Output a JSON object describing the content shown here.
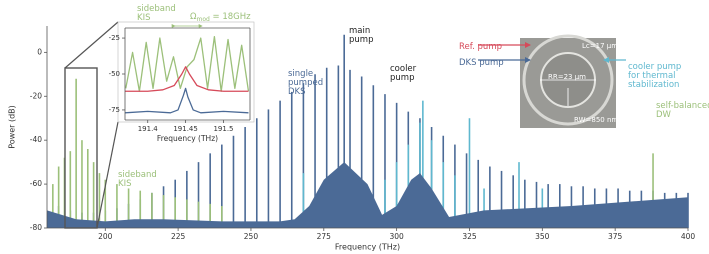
{
  "chart_data": [
    {
      "type": "spectrum",
      "xlabel": "Frequency (THz)",
      "ylabel": "Power (dB)",
      "xlim": [
        180,
        400
      ],
      "ylim": [
        -80,
        12
      ],
      "xticks": [
        200,
        225,
        250,
        275,
        300,
        325,
        350,
        375,
        400
      ],
      "yticks": [
        0,
        -20,
        -40,
        -60,
        -80
      ],
      "series": [
        {
          "style": "lines",
          "color": "#4b6a96",
          "x": [
            184,
            188,
            192,
            196,
            200,
            204,
            208,
            212,
            216,
            220,
            224,
            228,
            232,
            236,
            240,
            244,
            248,
            252,
            256,
            260,
            264,
            268,
            272,
            276,
            280,
            284,
            288,
            292,
            296,
            300,
            304,
            308,
            312,
            316,
            320,
            324,
            328,
            332,
            336,
            340,
            344,
            348,
            352,
            356,
            360,
            364,
            368,
            372,
            376,
            380,
            384,
            388,
            392,
            396,
            400
          ],
          "values": [
            -70,
            -72,
            -73,
            -73,
            -72,
            -71,
            -69,
            -67,
            -64,
            -61,
            -58,
            -54,
            -50,
            -46,
            -42,
            -38,
            -34,
            -30,
            -26,
            -22,
            -18,
            -14,
            -10,
            -7,
            -6,
            -8,
            -11,
            -15,
            -19,
            -23,
            -27,
            -30,
            -34,
            -38,
            -42,
            -46,
            -49,
            -52,
            -54,
            -56,
            -58,
            -59,
            -60,
            -60,
            -61,
            -61,
            -62,
            -62,
            -62,
            -63,
            -63,
            -63,
            -64,
            -64,
            -64
          ]
        },
        {
          "style": "lines",
          "color": "#9cc07a",
          "x": [
            182,
            184,
            186,
            188,
            190,
            192,
            194,
            196,
            198,
            200,
            204,
            208,
            212,
            216,
            220,
            224,
            228,
            232,
            236,
            240,
            388
          ],
          "values": [
            -60,
            -52,
            -48,
            -45,
            -12,
            -40,
            -44,
            -50,
            -55,
            -58,
            -60,
            -62,
            -63,
            -64,
            -65,
            -66,
            -67,
            -68,
            -69,
            -70,
            -46
          ]
        },
        {
          "style": "lines",
          "color": "#5fb8cf",
          "x": [
            268,
            296,
            300,
            304,
            308,
            309,
            312,
            316,
            320,
            325,
            330,
            342,
            350
          ],
          "values": [
            -55,
            -58,
            -50,
            -42,
            -32,
            -22,
            -40,
            -50,
            -56,
            -30,
            -62,
            -50,
            -62
          ]
        },
        {
          "style": "lines",
          "color": "#4b6a96",
          "x": [
            282
          ],
          "values": [
            8
          ]
        },
        {
          "style": "area",
          "color": "#4b6a96",
          "x": [
            180,
            190,
            200,
            210,
            220,
            240,
            260,
            265,
            270,
            275,
            282,
            290,
            295,
            300,
            305,
            308,
            312,
            318,
            330,
            360,
            400
          ],
          "values": [
            -72,
            -76,
            -77,
            -76,
            -76,
            -77,
            -77,
            -76,
            -70,
            -58,
            -50,
            -60,
            -74,
            -70,
            -58,
            -55,
            -62,
            -75,
            -72,
            -70,
            -66
          ]
        }
      ],
      "annotations": [
        {
          "text": [
            "main",
            "pump"
          ],
          "color": "#222222"
        },
        {
          "text": [
            "single",
            "pumped",
            "DKS"
          ],
          "color": "#4b6a96"
        },
        {
          "text": [
            "cooler",
            "pump"
          ],
          "color": "#222222"
        },
        {
          "text": [
            "sideband",
            "KIS"
          ],
          "color": "#9cc07a"
        },
        {
          "text": [
            "self-balanced",
            "DW"
          ],
          "color": "#9cc07a"
        },
        {
          "text": [
            "Ref. pump"
          ],
          "color": "#d64a5a"
        },
        {
          "text": [
            "DKS pump"
          ],
          "color": "#4b6a96"
        },
        {
          "text": [
            "cooler pump",
            "for thermal",
            "stabilization"
          ],
          "color": "#5fb8cf"
        }
      ],
      "image_labels": [
        "Lc=17 μm",
        "RR=23 μm",
        "RW=850 nm"
      ]
    },
    {
      "type": "line",
      "xlabel": "Frequency (THz)",
      "xlim": [
        191.37,
        191.535
      ],
      "ylim": [
        -82,
        -18
      ],
      "xticks": [
        191.4,
        191.45,
        191.5
      ],
      "yticks": [
        -25,
        -50,
        -75
      ],
      "series": [
        {
          "color": "#9cc07a",
          "x": [
            191.371,
            191.38,
            191.389,
            191.398,
            191.407,
            191.416,
            191.425,
            191.434,
            191.443,
            191.452,
            191.461,
            191.47,
            191.479,
            191.488,
            191.497,
            191.506,
            191.515,
            191.524,
            191.533
          ],
          "values": [
            -60,
            -35,
            -62,
            -28,
            -60,
            -25,
            -55,
            -38,
            -60,
            -45,
            -40,
            -25,
            -60,
            -24,
            -62,
            -26,
            -60,
            -30,
            -62
          ]
        },
        {
          "color": "#d64a5a",
          "x": [
            191.37,
            191.4,
            191.42,
            191.435,
            191.445,
            191.45,
            191.455,
            191.465,
            191.48,
            191.5,
            191.533
          ],
          "values": [
            -62,
            -62,
            -61,
            -58,
            -50,
            -45,
            -50,
            -58,
            -61,
            -62,
            -62
          ]
        },
        {
          "color": "#4b6a96",
          "x": [
            191.37,
            191.4,
            191.43,
            191.44,
            191.447,
            191.45,
            191.453,
            191.46,
            191.47,
            191.5,
            191.533
          ],
          "values": [
            -77,
            -76,
            -77,
            -75,
            -65,
            -60,
            -66,
            -75,
            -77,
            -76,
            -77
          ]
        }
      ],
      "annotations": [
        {
          "text": [
            "sideband",
            "KIS"
          ],
          "color": "#9cc07a"
        },
        {
          "text": [
            "Ω",
            "mod",
            " = 18GHz"
          ],
          "color": "#9cc07a"
        }
      ]
    }
  ]
}
